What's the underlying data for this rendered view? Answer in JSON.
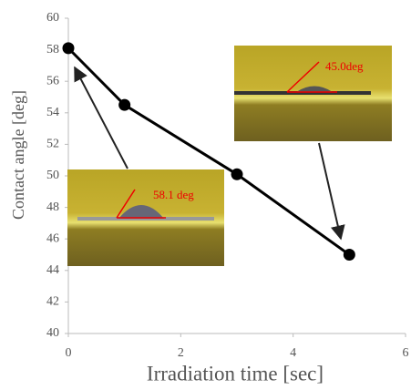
{
  "chart_data": {
    "type": "line",
    "x_label": "Irradiation time [sec]",
    "y_label": "Contact angle [deg]",
    "x": [
      0,
      1,
      3,
      5
    ],
    "series": [
      {
        "color": "#000000",
        "values": [
          58.1,
          54.5,
          50.1,
          45.0
        ]
      }
    ],
    "xlim": [
      0,
      6
    ],
    "xticks": [
      0,
      2,
      4,
      6
    ],
    "ylim": [
      40,
      60
    ],
    "yticks": [
      40,
      42,
      44,
      46,
      48,
      50,
      52,
      54,
      56,
      58,
      60
    ],
    "annotations": [
      {
        "text": "45.0deg"
      },
      {
        "text": "58.1 deg"
      }
    ]
  }
}
